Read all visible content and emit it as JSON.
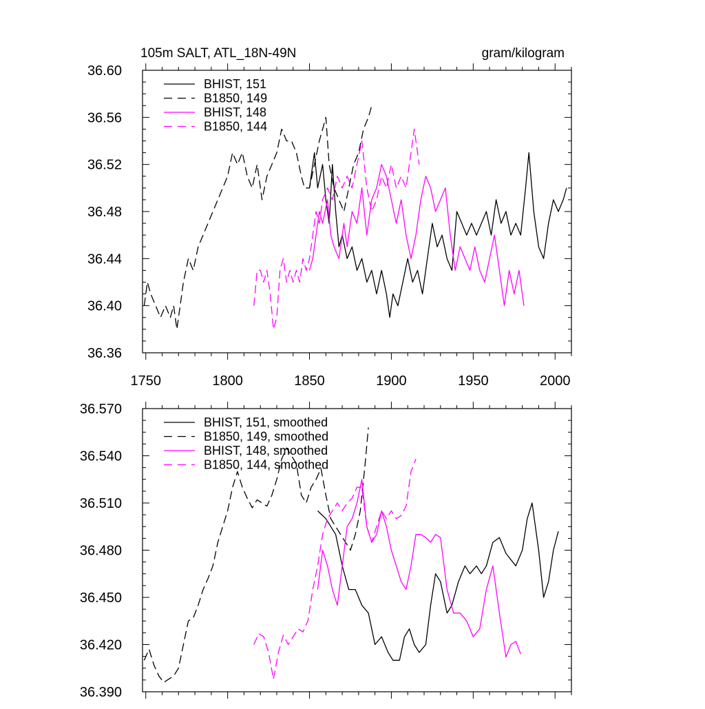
{
  "chart_data": [
    {
      "type": "line",
      "title_left": "105m SALT, ATL_18N-49N",
      "title_right": "gram/kilogram",
      "xlim": [
        1748,
        2010
      ],
      "ylim": [
        36.36,
        36.6
      ],
      "xticks": [
        1750,
        1800,
        1850,
        1900,
        1950,
        2000
      ],
      "xtick_labels": [
        "1750",
        "1800",
        "1850",
        "1900",
        "1950",
        "2000"
      ],
      "yticks": [
        36.36,
        36.4,
        36.44,
        36.48,
        36.52,
        36.56,
        36.6
      ],
      "ytick_labels": [
        "36.36",
        "36.40",
        "36.44",
        "36.48",
        "36.52",
        "36.56",
        "36.60"
      ],
      "legend": [
        "BHIST, 151",
        "B1850, 149",
        "BHIST, 148",
        "B1850, 144"
      ],
      "series": [
        {
          "name": "BHIST, 151",
          "color": "#000000",
          "dash": "solid",
          "x": [
            1850,
            1853,
            1855,
            1858,
            1860,
            1862,
            1864,
            1866,
            1868,
            1870,
            1873,
            1876,
            1879,
            1882,
            1885,
            1888,
            1891,
            1894,
            1897,
            1899,
            1901,
            1904,
            1907,
            1910,
            1913,
            1916,
            1919,
            1922,
            1925,
            1928,
            1931,
            1934,
            1937,
            1940,
            1943,
            1946,
            1949,
            1952,
            1955,
            1958,
            1961,
            1964,
            1967,
            1970,
            1973,
            1976,
            1979,
            1982,
            1984,
            1987,
            1990,
            1993,
            1996,
            1999,
            2002,
            2005,
            2007
          ],
          "values": [
            36.5,
            36.53,
            36.5,
            36.52,
            36.49,
            36.47,
            36.52,
            36.48,
            36.45,
            36.46,
            36.44,
            36.45,
            36.43,
            36.44,
            36.42,
            36.43,
            36.41,
            36.43,
            36.41,
            36.39,
            36.41,
            36.4,
            36.42,
            36.44,
            36.42,
            36.43,
            36.41,
            36.44,
            36.47,
            36.45,
            36.46,
            36.44,
            36.43,
            36.48,
            36.47,
            36.46,
            36.47,
            36.46,
            36.47,
            36.48,
            36.46,
            36.49,
            36.47,
            36.48,
            36.46,
            36.47,
            36.46,
            36.5,
            36.53,
            36.48,
            36.45,
            36.44,
            36.47,
            36.49,
            36.48,
            36.49,
            36.5
          ]
        },
        {
          "name": "B1850, 149",
          "color": "#000000",
          "dash": "dashed",
          "x": [
            1749,
            1751,
            1753,
            1756,
            1759,
            1762,
            1765,
            1767,
            1769,
            1771,
            1773,
            1776,
            1779,
            1782,
            1785,
            1788,
            1791,
            1794,
            1797,
            1800,
            1803,
            1806,
            1809,
            1812,
            1815,
            1818,
            1821,
            1824,
            1827,
            1830,
            1833,
            1836,
            1839,
            1842,
            1845,
            1847,
            1850,
            1853,
            1856,
            1858,
            1860,
            1862,
            1865,
            1868,
            1871,
            1874,
            1877,
            1880,
            1883,
            1886,
            1888
          ],
          "values": [
            36.4,
            36.42,
            36.41,
            36.4,
            36.39,
            36.4,
            36.39,
            36.4,
            36.38,
            36.4,
            36.42,
            36.44,
            36.43,
            36.45,
            36.46,
            36.47,
            36.48,
            36.49,
            36.5,
            36.51,
            36.53,
            36.52,
            36.53,
            36.51,
            36.5,
            36.52,
            36.49,
            36.51,
            36.52,
            36.53,
            36.55,
            36.54,
            36.54,
            36.53,
            36.51,
            36.5,
            36.5,
            36.52,
            36.54,
            36.55,
            36.56,
            36.52,
            36.5,
            36.49,
            36.48,
            36.5,
            36.52,
            36.53,
            36.55,
            36.56,
            36.57
          ]
        },
        {
          "name": "BHIST, 148",
          "color": "#ff00ff",
          "dash": "solid",
          "x": [
            1850,
            1852,
            1854,
            1856,
            1858,
            1861,
            1863,
            1865,
            1868,
            1871,
            1873,
            1876,
            1879,
            1882,
            1885,
            1888,
            1891,
            1894,
            1897,
            1900,
            1903,
            1906,
            1909,
            1912,
            1915,
            1918,
            1921,
            1924,
            1927,
            1930,
            1933,
            1936,
            1939,
            1942,
            1945,
            1948,
            1951,
            1954,
            1957,
            1960,
            1963,
            1966,
            1969,
            1972,
            1975,
            1978,
            1981
          ],
          "values": [
            36.43,
            36.44,
            36.46,
            36.48,
            36.47,
            36.49,
            36.46,
            36.45,
            36.44,
            36.47,
            36.45,
            36.48,
            36.47,
            36.5,
            36.46,
            36.49,
            36.5,
            36.52,
            36.51,
            36.49,
            36.47,
            36.49,
            36.46,
            36.44,
            36.46,
            36.49,
            36.51,
            36.5,
            36.48,
            36.49,
            36.5,
            36.46,
            36.43,
            36.45,
            36.44,
            36.43,
            36.45,
            36.43,
            36.42,
            36.44,
            36.46,
            36.43,
            36.4,
            36.43,
            36.41,
            36.43,
            36.4
          ]
        },
        {
          "name": "B1850, 144",
          "color": "#ff00ff",
          "dash": "dashed",
          "x": [
            1816,
            1818,
            1820,
            1822,
            1824,
            1826,
            1828,
            1830,
            1832,
            1834,
            1836,
            1838,
            1840,
            1842,
            1844,
            1846,
            1848,
            1850,
            1852,
            1854,
            1856,
            1858,
            1861,
            1864,
            1867,
            1870,
            1873,
            1876,
            1879,
            1882,
            1885,
            1888,
            1891,
            1894,
            1897,
            1900,
            1903,
            1906,
            1909,
            1912,
            1914,
            1917
          ],
          "values": [
            36.4,
            36.43,
            36.43,
            36.42,
            36.43,
            36.41,
            36.38,
            36.39,
            36.43,
            36.44,
            36.42,
            36.43,
            36.42,
            36.43,
            36.42,
            36.44,
            36.43,
            36.44,
            36.46,
            36.48,
            36.47,
            36.49,
            36.5,
            36.49,
            36.51,
            36.5,
            36.51,
            36.5,
            36.52,
            36.54,
            36.5,
            36.48,
            36.49,
            36.51,
            36.5,
            36.52,
            36.5,
            36.51,
            36.5,
            36.53,
            36.55,
            36.52
          ]
        }
      ]
    },
    {
      "type": "line",
      "title_left": "",
      "title_right": "",
      "xlim": [
        1748,
        2010
      ],
      "ylim": [
        36.39,
        36.57
      ],
      "xticks": [
        1750,
        1800,
        1850,
        1900,
        1950,
        2000
      ],
      "xtick_labels": [],
      "yticks": [
        36.39,
        36.42,
        36.45,
        36.48,
        36.51,
        36.54,
        36.57
      ],
      "ytick_labels": [
        "36.390",
        "36.420",
        "36.450",
        "36.480",
        "36.510",
        "36.540",
        "36.570"
      ],
      "legend": [
        "BHIST, 151, smoothed",
        "B1850, 149, smoothed",
        "BHIST, 148, smoothed",
        "B1850, 144, smoothed"
      ],
      "series": [
        {
          "name": "BHIST, 151, smoothed",
          "color": "#000000",
          "dash": "solid",
          "x": [
            1855,
            1860,
            1863,
            1866,
            1870,
            1874,
            1878,
            1882,
            1886,
            1890,
            1894,
            1898,
            1901,
            1905,
            1908,
            1911,
            1914,
            1917,
            1921,
            1924,
            1927,
            1930,
            1934,
            1937,
            1941,
            1945,
            1948,
            1952,
            1955,
            1958,
            1962,
            1966,
            1970,
            1973,
            1976,
            1980,
            1983,
            1986,
            1990,
            1993,
            1996,
            1999,
            2002
          ],
          "values": [
            36.505,
            36.5,
            36.495,
            36.49,
            36.47,
            36.455,
            36.455,
            36.445,
            36.44,
            36.42,
            36.425,
            36.415,
            36.41,
            36.41,
            36.425,
            36.43,
            36.42,
            36.415,
            36.42,
            36.445,
            36.465,
            36.46,
            36.44,
            36.445,
            36.46,
            36.47,
            36.465,
            36.47,
            36.465,
            36.47,
            36.485,
            36.488,
            36.478,
            36.474,
            36.47,
            36.48,
            36.5,
            36.51,
            36.48,
            36.45,
            36.46,
            36.48,
            36.492
          ]
        },
        {
          "name": "B1850, 149, smoothed",
          "color": "#000000",
          "dash": "dashed",
          "x": [
            1749,
            1752,
            1755,
            1758,
            1761,
            1764,
            1767,
            1770,
            1773,
            1776,
            1779,
            1782,
            1785,
            1788,
            1791,
            1794,
            1797,
            1800,
            1803,
            1806,
            1809,
            1812,
            1815,
            1818,
            1821,
            1824,
            1827,
            1830,
            1833,
            1836,
            1839,
            1842,
            1845,
            1848,
            1851,
            1854,
            1857,
            1860,
            1863,
            1866,
            1869,
            1872,
            1875,
            1878,
            1881,
            1884,
            1886
          ],
          "values": [
            36.41,
            36.417,
            36.407,
            36.4,
            36.396,
            36.398,
            36.4,
            36.405,
            36.42,
            36.435,
            36.437,
            36.445,
            36.455,
            36.462,
            36.47,
            36.485,
            36.495,
            36.505,
            36.52,
            36.53,
            36.52,
            36.513,
            36.507,
            36.512,
            36.51,
            36.508,
            36.515,
            36.525,
            36.538,
            36.545,
            36.54,
            36.535,
            36.515,
            36.51,
            36.52,
            36.525,
            36.532,
            36.515,
            36.5,
            36.495,
            36.49,
            36.485,
            36.48,
            36.49,
            36.505,
            36.535,
            36.558
          ]
        },
        {
          "name": "BHIST, 148, smoothed",
          "color": "#ff00ff",
          "dash": "solid",
          "x": [
            1855,
            1858,
            1861,
            1864,
            1867,
            1870,
            1873,
            1876,
            1879,
            1882,
            1885,
            1888,
            1891,
            1894,
            1897,
            1900,
            1903,
            1906,
            1909,
            1912,
            1915,
            1918,
            1921,
            1924,
            1927,
            1930,
            1934,
            1938,
            1942,
            1946,
            1950,
            1954,
            1958,
            1962,
            1966,
            1970,
            1973,
            1976,
            1979
          ],
          "values": [
            36.455,
            36.48,
            36.47,
            36.455,
            36.445,
            36.47,
            36.495,
            36.5,
            36.51,
            36.525,
            36.495,
            36.485,
            36.49,
            36.505,
            36.495,
            36.48,
            36.47,
            36.46,
            36.455,
            36.47,
            36.49,
            36.49,
            36.488,
            36.485,
            36.49,
            36.488,
            36.455,
            36.44,
            36.44,
            36.435,
            36.425,
            36.43,
            36.455,
            36.47,
            36.44,
            36.412,
            36.42,
            36.422,
            36.414
          ]
        },
        {
          "name": "B1850, 144, smoothed",
          "color": "#ff00ff",
          "dash": "dashed",
          "x": [
            1816,
            1819,
            1822,
            1825,
            1828,
            1831,
            1834,
            1837,
            1840,
            1843,
            1846,
            1849,
            1852,
            1855,
            1858,
            1861,
            1864,
            1867,
            1870,
            1873,
            1876,
            1879,
            1882,
            1885,
            1888,
            1891,
            1894,
            1897,
            1900,
            1903,
            1906,
            1909,
            1912,
            1915
          ],
          "values": [
            36.42,
            36.427,
            36.425,
            36.415,
            36.398,
            36.415,
            36.426,
            36.42,
            36.425,
            36.43,
            36.428,
            36.435,
            36.455,
            36.47,
            36.49,
            36.5,
            36.505,
            36.51,
            36.505,
            36.51,
            36.513,
            36.52,
            36.52,
            36.495,
            36.485,
            36.495,
            36.505,
            36.5,
            36.505,
            36.5,
            36.502,
            36.508,
            36.53,
            36.538
          ]
        }
      ]
    }
  ]
}
